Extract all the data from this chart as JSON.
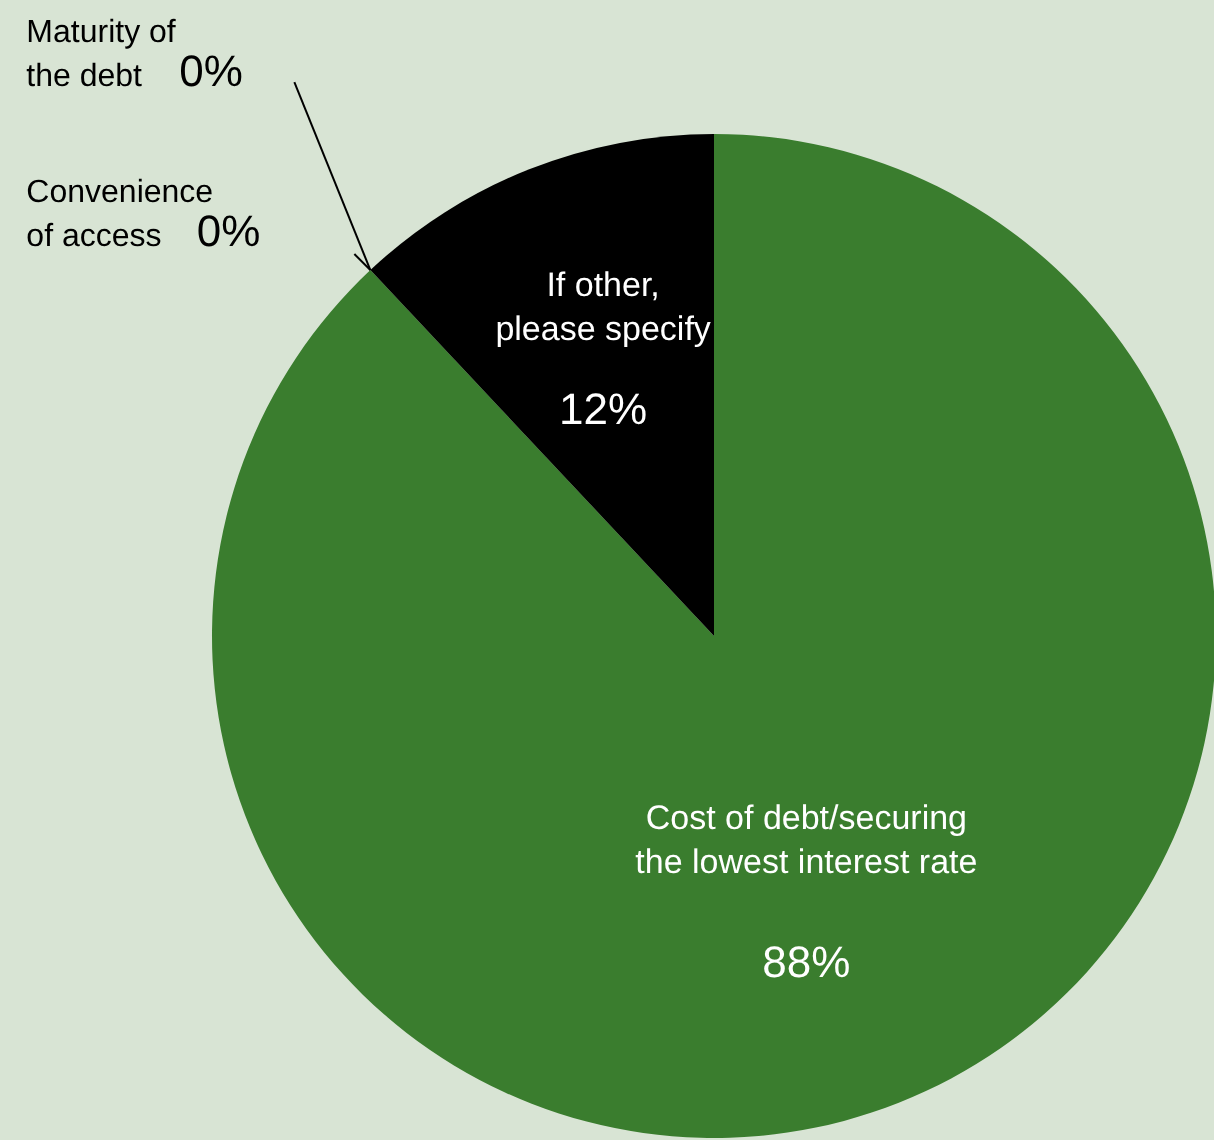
{
  "chart_data": {
    "type": "pie",
    "categories": [
      "Cost of debt/securing the lowest interest rate",
      "Convenience of access",
      "Maturity of the debt",
      "If other, please specify"
    ],
    "values": [
      88,
      0,
      0,
      12
    ],
    "colors": [
      "#3a7d2e",
      "#3a7d2e",
      "#3a7d2e",
      "#000000"
    ],
    "value_labels": [
      "88%",
      "0%",
      "0%",
      "12%"
    ],
    "legend": false
  }
}
